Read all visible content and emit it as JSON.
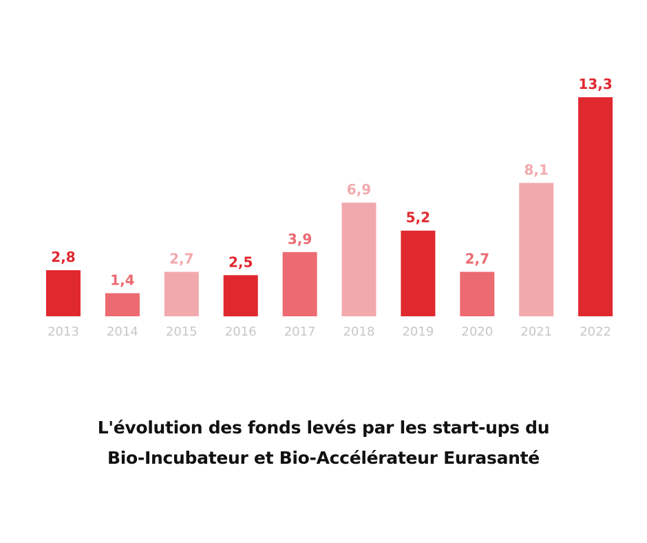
{
  "chart_data": {
    "type": "bar",
    "categories": [
      "2013",
      "2014",
      "2015",
      "2016",
      "2017",
      "2018",
      "2019",
      "2020",
      "2021",
      "2022"
    ],
    "values": [
      2.8,
      1.4,
      2.7,
      2.5,
      3.9,
      6.9,
      5.2,
      2.7,
      8.1,
      13.3
    ],
    "value_labels": [
      "2,8",
      "1,4",
      "2,7",
      "2,5",
      "3,9",
      "6,9",
      "5,2",
      "2,7",
      "8,1",
      "13,3"
    ],
    "bar_colors": [
      "#e0282f",
      "#ec6a71",
      "#f2a9ae",
      "#e0282f",
      "#ec6a71",
      "#f2a9ae",
      "#e0282f",
      "#ec6a71",
      "#f2a9ae",
      "#e0282f"
    ],
    "ylim": [
      0,
      14
    ],
    "grid": false,
    "tick_color": "#c7c7c7"
  },
  "caption": {
    "line1": "L'évolution des fonds levés par les start-ups du",
    "line2": "Bio-Incubateur et Bio-Accélérateur Eurasanté"
  }
}
